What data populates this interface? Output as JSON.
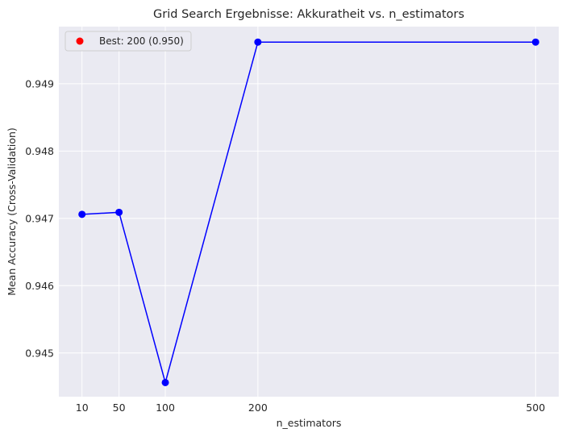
{
  "chart_data": {
    "type": "line",
    "title": "Grid Search Ergebnisse: Akkuratheit vs. n_estimators",
    "xlabel": "n_estimators",
    "ylabel": "Mean Accuracy (Cross-Validation)",
    "x": [
      10,
      50,
      100,
      200,
      500
    ],
    "xticks": [
      10,
      50,
      100,
      200,
      500
    ],
    "xlim": [
      -15,
      525
    ],
    "ylim": [
      0.94435,
      0.94985
    ],
    "yticks": [
      0.945,
      0.946,
      0.947,
      0.948,
      0.949
    ],
    "ytick_labels": [
      "0.945",
      "0.946",
      "0.947",
      "0.948",
      "0.949"
    ],
    "grid": true,
    "series": [
      {
        "values": [
          0.94706,
          0.94709,
          0.94456,
          0.94962,
          0.94962
        ],
        "color": "#0000ff"
      }
    ],
    "best_point": {
      "x": 200,
      "y": 0.94962,
      "color": "#ff0000",
      "label": "Best: 200 (0.950)"
    },
    "legend": {
      "position": "top-left",
      "entries": [
        "Best: 200 (0.950)"
      ]
    },
    "colors": {
      "background": "#eaeaf2",
      "grid": "#ffffff",
      "line": "#0000ff",
      "best": "#ff0000"
    }
  }
}
